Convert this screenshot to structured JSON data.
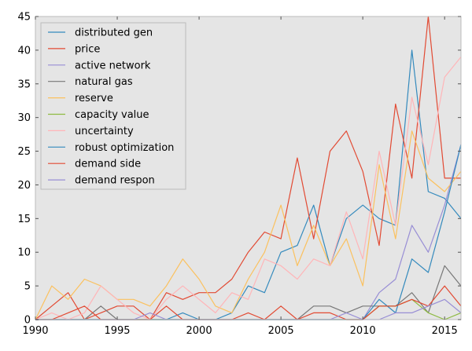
{
  "chart_data": {
    "type": "line",
    "title": "",
    "xlabel": "",
    "ylabel": "",
    "xlim": [
      1990,
      2016
    ],
    "ylim": [
      0,
      45
    ],
    "xticks": [
      1990,
      1995,
      2000,
      2005,
      2010,
      2015
    ],
    "yticks": [
      0,
      5,
      10,
      15,
      20,
      25,
      30,
      35,
      40,
      45
    ],
    "grid": false,
    "legend_position": "top-left",
    "background": "#e5e5e5",
    "x": [
      1990,
      1991,
      1992,
      1993,
      1994,
      1995,
      1996,
      1997,
      1998,
      1999,
      2000,
      2001,
      2002,
      2003,
      2004,
      2005,
      2006,
      2007,
      2008,
      2009,
      2010,
      2011,
      2012,
      2013,
      2014,
      2015,
      2016
    ],
    "series": [
      {
        "name": "distributed gen",
        "color": "#348abd",
        "values": [
          0,
          0,
          0,
          0,
          0,
          0,
          0,
          0,
          0,
          1,
          0,
          0,
          1,
          5,
          4,
          10,
          11,
          17,
          8,
          15,
          17,
          15,
          14,
          40,
          19,
          18,
          15
        ]
      },
      {
        "name": "price",
        "color": "#e24a33",
        "values": [
          0,
          2,
          4,
          0,
          1,
          2,
          2,
          0,
          4,
          3,
          4,
          4,
          6,
          10,
          13,
          12,
          24,
          12,
          25,
          28,
          22,
          11,
          32,
          21,
          45,
          21,
          21
        ]
      },
      {
        "name": "active network",
        "color": "#988ed5",
        "values": [
          0,
          0,
          0,
          0,
          0,
          0,
          0,
          0,
          0,
          0,
          0,
          0,
          0,
          0,
          0,
          0,
          0,
          0,
          0,
          0,
          0,
          4,
          6,
          14,
          10,
          17,
          26
        ]
      },
      {
        "name": "natural gas",
        "color": "#777777",
        "values": [
          0,
          0,
          0,
          0,
          2,
          0,
          0,
          0,
          0,
          0,
          0,
          0,
          0,
          0,
          0,
          0,
          0,
          2,
          2,
          1,
          2,
          2,
          2,
          4,
          1,
          8,
          5
        ]
      },
      {
        "name": "reserve",
        "color": "#fbc15e",
        "values": [
          0,
          5,
          3,
          6,
          5,
          3,
          3,
          2,
          5,
          9,
          6,
          2,
          1,
          6,
          10,
          17,
          8,
          14,
          8,
          12,
          5,
          23,
          12,
          28,
          21,
          19,
          22
        ]
      },
      {
        "name": "capacity value",
        "color": "#8eba42",
        "values": [
          0,
          0,
          0,
          0,
          0,
          0,
          0,
          0,
          0,
          0,
          0,
          0,
          0,
          0,
          0,
          0,
          0,
          0,
          0,
          0,
          0,
          2,
          2,
          3,
          1,
          0,
          1
        ]
      },
      {
        "name": "uncertainty",
        "color": "#ffb5b8",
        "values": [
          0,
          1,
          0,
          1,
          5,
          3,
          1,
          0,
          3,
          5,
          3,
          1,
          4,
          3,
          9,
          8,
          6,
          9,
          8,
          16,
          9,
          25,
          14,
          33,
          23,
          36,
          39
        ]
      },
      {
        "name": "robust optimization",
        "color": "#348abd",
        "values": [
          0,
          0,
          0,
          0,
          0,
          0,
          0,
          0,
          0,
          0,
          0,
          0,
          0,
          0,
          0,
          0,
          0,
          0,
          0,
          0,
          0,
          3,
          1,
          9,
          7,
          16,
          26
        ]
      },
      {
        "name": "demand side",
        "color": "#e24a33",
        "values": [
          0,
          0,
          1,
          2,
          0,
          0,
          0,
          0,
          2,
          0,
          0,
          0,
          0,
          1,
          0,
          2,
          0,
          1,
          1,
          0,
          0,
          2,
          2,
          3,
          2,
          5,
          2
        ]
      },
      {
        "name": "demand respon",
        "color": "#988ed5",
        "values": [
          0,
          0,
          0,
          0,
          0,
          0,
          0,
          1,
          0,
          0,
          0,
          0,
          0,
          0,
          0,
          0,
          0,
          0,
          0,
          1,
          0,
          0,
          1,
          1,
          2,
          3,
          1
        ]
      }
    ]
  }
}
